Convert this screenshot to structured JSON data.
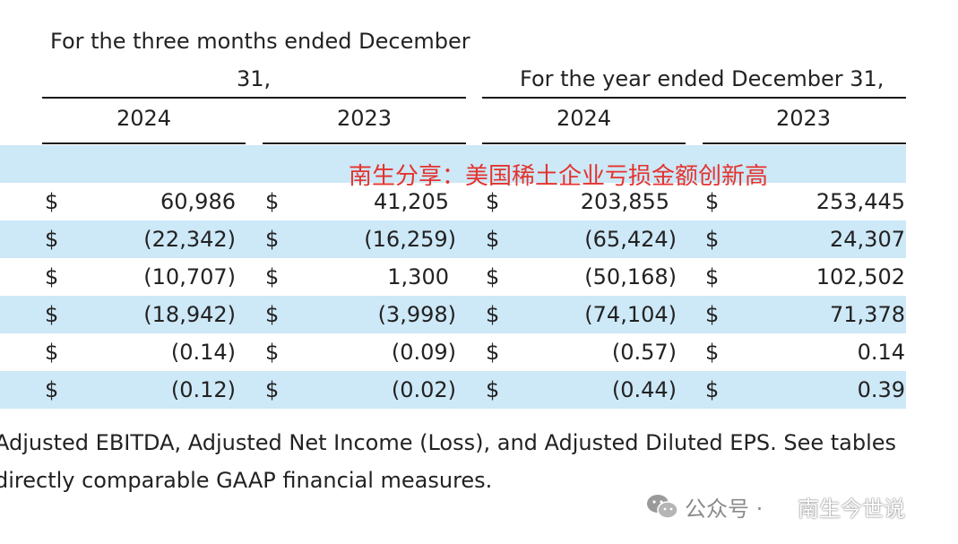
{
  "header": {
    "three_months_line1": "For the three months ended December",
    "three_months_line2": "31,",
    "year_title": "For the year ended December 31,",
    "years": [
      "2024",
      "2023",
      "2024",
      "2023"
    ]
  },
  "watermark_text": "南生分享：美国稀土企业亏损金额创新高",
  "rows": [
    {
      "cells": [
        {
          "cur": "$",
          "val": "60,986"
        },
        {
          "cur": "$",
          "val": "41,205"
        },
        {
          "cur": "$",
          "val": "203,855"
        },
        {
          "cur": "$",
          "val": "253,445"
        }
      ]
    },
    {
      "cells": [
        {
          "cur": "$",
          "val": "(22,342)"
        },
        {
          "cur": "$",
          "val": "(16,259)"
        },
        {
          "cur": "$",
          "val": "(65,424)"
        },
        {
          "cur": "$",
          "val": "24,307"
        }
      ]
    },
    {
      "cells": [
        {
          "cur": "$",
          "val": "(10,707)"
        },
        {
          "cur": "$",
          "val": "1,300"
        },
        {
          "cur": "$",
          "val": "(50,168)"
        },
        {
          "cur": "$",
          "val": "102,502"
        }
      ]
    },
    {
      "cells": [
        {
          "cur": "$",
          "val": "(18,942)"
        },
        {
          "cur": "$",
          "val": "(3,998)"
        },
        {
          "cur": "$",
          "val": "(74,104)"
        },
        {
          "cur": "$",
          "val": "71,378"
        }
      ]
    },
    {
      "cells": [
        {
          "cur": "$",
          "val": "(0.14)"
        },
        {
          "cur": "$",
          "val": "(0.09)"
        },
        {
          "cur": "$",
          "val": "(0.57)"
        },
        {
          "cur": "$",
          "val": "0.14"
        }
      ]
    },
    {
      "cells": [
        {
          "cur": "$",
          "val": "(0.12)"
        },
        {
          "cur": "$",
          "val": "(0.02)"
        },
        {
          "cur": "$",
          "val": "(0.44)"
        },
        {
          "cur": "$",
          "val": "0.39"
        }
      ]
    }
  ],
  "footnote": {
    "line1": "Adjusted EBITDA, Adjusted Net Income (Loss), and Adjusted Diluted EPS. See tables",
    "line2": "directly comparable GAAP financial measures."
  },
  "corner_watermark": {
    "public_label": "公众号 ·",
    "account_name": "南生今世说"
  }
}
